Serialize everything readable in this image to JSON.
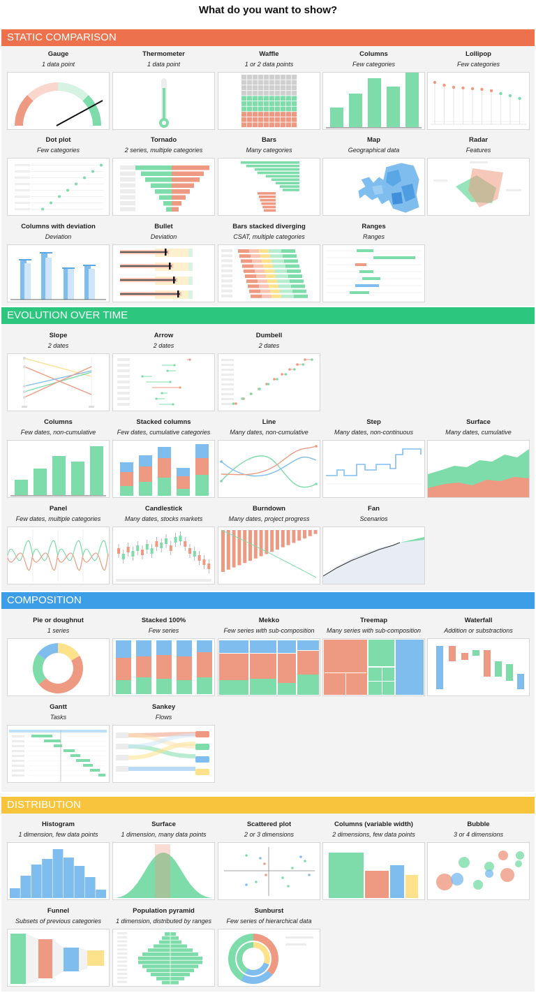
{
  "page_title": "What do you want to show?",
  "colors": {
    "static": "#ec714c",
    "evolution": "#2dc67f",
    "composition": "#3d9ee8",
    "distribution": "#f8c43c",
    "green": "#7ddca9",
    "red": "#ee9a82",
    "blue": "#7fbdef",
    "yellow": "#fde18b"
  },
  "sections": [
    {
      "label": "STATIC COMPARISON",
      "cards": [
        {
          "title": "Gauge",
          "subtitle": "1 data point",
          "icon": "gauge-chart"
        },
        {
          "title": "Thermometer",
          "subtitle": "1 data point",
          "icon": "thermometer-chart"
        },
        {
          "title": "Waffle",
          "subtitle": "1 or 2 data points",
          "icon": "waffle-chart"
        },
        {
          "title": "Columns",
          "subtitle": "Few categories",
          "icon": "columns-chart"
        },
        {
          "title": "Lollipop",
          "subtitle": "Few categories",
          "icon": "lollipop-chart"
        },
        {
          "title": "Dot plot",
          "subtitle": "Few categories",
          "icon": "dot-plot-chart"
        },
        {
          "title": "Tornado",
          "subtitle": "2 series, multiple categories",
          "icon": "tornado-chart"
        },
        {
          "title": "Bars",
          "subtitle": "Many categories",
          "icon": "bars-chart"
        },
        {
          "title": "Map",
          "subtitle": "Geographical data",
          "icon": "map-chart"
        },
        {
          "title": "Radar",
          "subtitle": "Features",
          "icon": "radar-chart"
        },
        {
          "title": "Columns with deviation",
          "subtitle": "Deviation",
          "icon": "columns-deviation-chart"
        },
        {
          "title": "Bullet",
          "subtitle": "Deviation",
          "icon": "bullet-chart"
        },
        {
          "title": "Bars stacked diverging",
          "subtitle": "CSAT, multiple categories",
          "icon": "diverging-bars-chart"
        },
        {
          "title": "Ranges",
          "subtitle": "Ranges",
          "icon": "ranges-chart"
        }
      ]
    },
    {
      "label": "EVOLUTION OVER TIME",
      "cards": [
        {
          "title": "Slope",
          "subtitle": "2 dates",
          "icon": "slope-chart"
        },
        {
          "title": "Arrow",
          "subtitle": "2 dates",
          "icon": "arrow-chart"
        },
        {
          "title": "Dumbell",
          "subtitle": "2 dates",
          "icon": "dumbell-chart"
        },
        {
          "title": "Columns",
          "subtitle": "Few dates, non-cumulative",
          "icon": "columns-time-chart"
        },
        {
          "title": "Stacked columns",
          "subtitle": "Few dates, cumulative categories",
          "icon": "stacked-columns-chart"
        },
        {
          "title": "Line",
          "subtitle": "Many dates, non-cumulative",
          "icon": "line-chart"
        },
        {
          "title": "Step",
          "subtitle": "Many dates, non-continuous",
          "icon": "step-chart"
        },
        {
          "title": "Surface",
          "subtitle": "Many dates, cumulative",
          "icon": "surface-time-chart"
        },
        {
          "title": "Panel",
          "subtitle": "Few dates, multiple categories",
          "icon": "panel-chart"
        },
        {
          "title": "Candlestick",
          "subtitle": "Many dates, stocks markets",
          "icon": "candlestick-chart"
        },
        {
          "title": "Burndown",
          "subtitle": "Many dates, project progress",
          "icon": "burndown-chart"
        },
        {
          "title": "Fan",
          "subtitle": "Scenarios",
          "icon": "fan-chart"
        }
      ]
    },
    {
      "label": "COMPOSITION",
      "cards": [
        {
          "title": "Pie or doughnut",
          "subtitle": "1 series",
          "icon": "doughnut-chart"
        },
        {
          "title": "Stacked 100%",
          "subtitle": "Few series",
          "icon": "stacked-100-chart"
        },
        {
          "title": "Mekko",
          "subtitle": "Few series with sub-composition",
          "icon": "mekko-chart"
        },
        {
          "title": "Treemap",
          "subtitle": "Many series with sub-composition",
          "icon": "treemap-chart"
        },
        {
          "title": "Waterfall",
          "subtitle": "Addition or substractions",
          "icon": "waterfall-chart"
        },
        {
          "title": "Gantt",
          "subtitle": "Tasks",
          "icon": "gantt-chart"
        },
        {
          "title": "Sankey",
          "subtitle": "Flows",
          "icon": "sankey-chart"
        }
      ]
    },
    {
      "label": "DISTRIBUTION",
      "cards": [
        {
          "title": "Histogram",
          "subtitle": "1 dimension, few data points",
          "icon": "histogram-chart"
        },
        {
          "title": "Surface",
          "subtitle": "1 dimension, many data points",
          "icon": "surface-distribution-chart"
        },
        {
          "title": "Scattered plot",
          "subtitle": "2 or 3 dimensions",
          "icon": "scatter-chart"
        },
        {
          "title": "Columns (variable width)",
          "subtitle": "2 dimensions, few data points",
          "icon": "variable-width-columns-chart"
        },
        {
          "title": "Bubble",
          "subtitle": "3 or 4 dimensions",
          "icon": "bubble-chart"
        },
        {
          "title": "Funnel",
          "subtitle": "Subsets of previous categories",
          "icon": "funnel-chart"
        },
        {
          "title": "Population pyramid",
          "subtitle": "1 dimension, distributed by ranges",
          "icon": "population-pyramid-chart"
        },
        {
          "title": "Sunburst",
          "subtitle": "Few series of hierarchical data",
          "icon": "sunburst-chart"
        }
      ]
    }
  ]
}
